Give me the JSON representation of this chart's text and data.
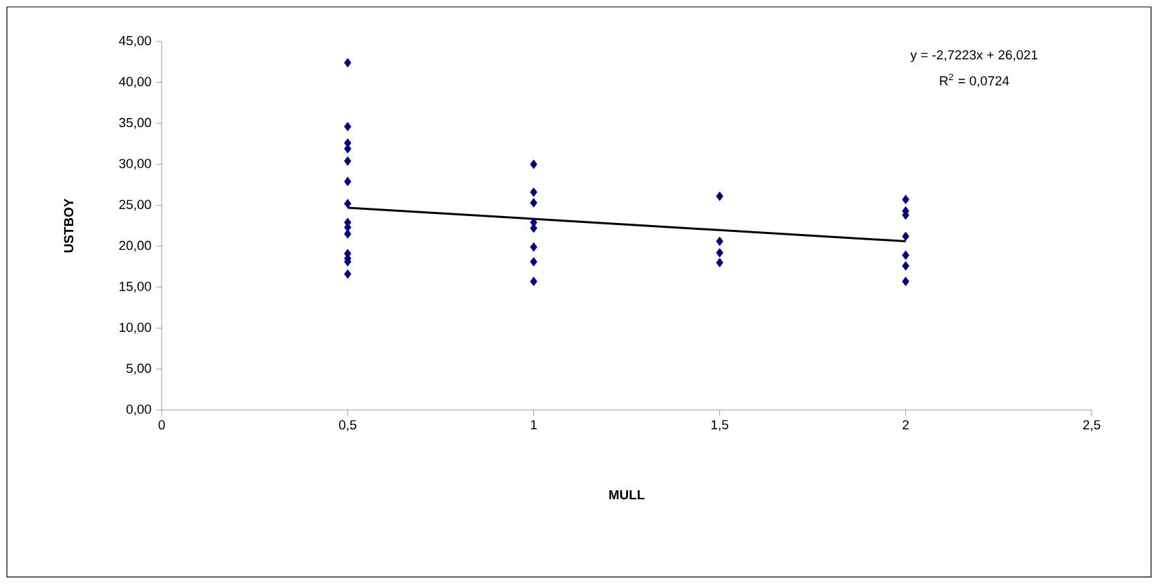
{
  "chart_data": {
    "type": "scatter",
    "xlabel": "**MULL**",
    "ylabel": "**USTBOY**",
    "marker": "diamond",
    "grid": false,
    "xlim": [
      0,
      2.5
    ],
    "xticks": [
      0,
      {
        "value": 0.5,
        "label": "0,5"
      },
      1,
      {
        "value": 1.5,
        "label": "1,5"
      },
      2,
      {
        "value": 2.5,
        "label": "2,5"
      }
    ],
    "ylim": [
      0,
      45
    ],
    "yticks": [
      {
        "value": 0,
        "label": "0,00"
      },
      {
        "value": 5,
        "label": "5,00"
      },
      {
        "value": 10,
        "label": "10,00"
      },
      {
        "value": 15,
        "label": "15,00"
      },
      {
        "value": 20,
        "label": "20,00"
      },
      {
        "value": 25,
        "label": "25,00"
      },
      {
        "value": 30,
        "label": "30,00"
      },
      {
        "value": 35,
        "label": "35,00"
      },
      {
        "value": 40,
        "label": "40,00"
      },
      {
        "value": 45,
        "label": "45,00"
      }
    ],
    "series": [
      {
        "color": "#000080",
        "x": [
          0.5,
          0.5,
          0.5,
          0.5,
          0.5,
          0.5,
          0.5,
          0.5,
          0.5,
          0.5,
          0.5,
          0.5,
          0.5,
          0.5,
          1,
          1,
          1,
          1,
          1,
          1,
          1,
          1,
          1.5,
          1.5,
          1.5,
          1.5,
          2,
          2,
          2,
          2,
          2,
          2,
          2
        ],
        "values": [
          42.4,
          34.6,
          32.6,
          31.9,
          30.4,
          27.9,
          25.2,
          22.9,
          22.3,
          21.5,
          19.1,
          18.5,
          18.1,
          16.6,
          30.0,
          26.6,
          25.3,
          22.9,
          22.2,
          19.9,
          18.1,
          15.7,
          26.1,
          20.6,
          19.2,
          18.0,
          25.7,
          24.3,
          23.8,
          21.2,
          18.9,
          17.6,
          15.7
        ]
      },
      {
        "type": "line",
        "marker": "none",
        "color": "#000000",
        "x": [
          0.5,
          2
        ],
        "values": [
          24.7,
          20.6
        ]
      }
    ],
    "annotations": [
      "y = -2,7223x + 26,021",
      "R$^{2}$ = 0,0724"
    ]
  }
}
